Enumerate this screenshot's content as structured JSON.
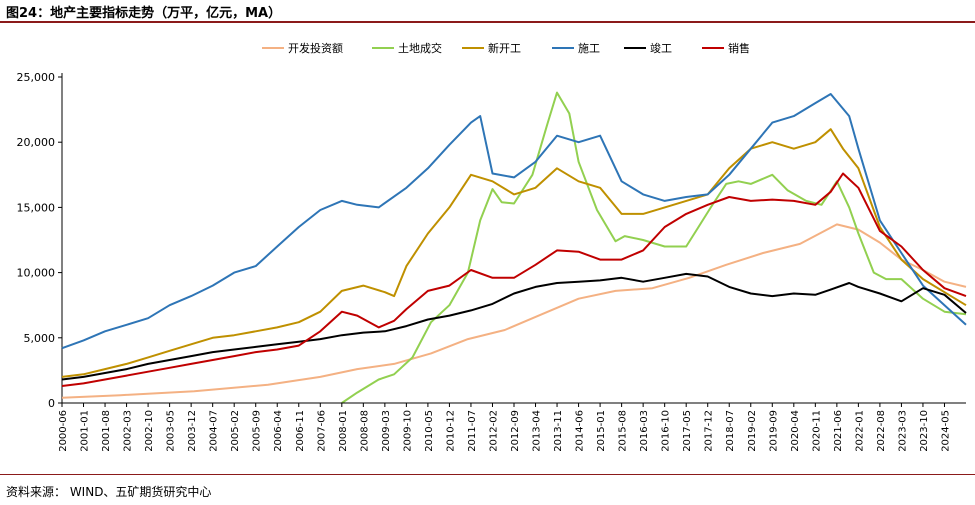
{
  "header": {
    "title": "图24：地产主要指标走势（万平，亿元，MA）"
  },
  "footer": {
    "source": "资料来源： WIND、五矿期货研究中心"
  },
  "chart_data": {
    "type": "line",
    "title": "图24：地产主要指标走势（万平，亿元，MA）",
    "xlabel": "",
    "ylabel": "",
    "ylim": [
      0,
      25000
    ],
    "yticks": [
      0,
      5000,
      10000,
      15000,
      20000,
      25000
    ],
    "ytick_labels": [
      "0",
      "5,000",
      "10,000",
      "15,000",
      "20,000",
      "25,000"
    ],
    "grid": false,
    "legend_position": "top-center",
    "x_start": "2000-06",
    "x_end": "2024-12",
    "xtick_labels": [
      "2000-06",
      "2001-01",
      "2001-08",
      "2002-03",
      "2002-10",
      "2003-05",
      "2003-12",
      "2004-07",
      "2005-02",
      "2005-09",
      "2006-04",
      "2006-11",
      "2007-06",
      "2008-01",
      "2008-08",
      "2009-03",
      "2009-10",
      "2010-05",
      "2010-12",
      "2011-07",
      "2012-02",
      "2012-09",
      "2013-04",
      "2013-11",
      "2014-06",
      "2015-01",
      "2015-08",
      "2016-03",
      "2016-10",
      "2017-05",
      "2017-12",
      "2018-07",
      "2019-02",
      "2019-09",
      "2020-04",
      "2020-11",
      "2021-06",
      "2022-01",
      "2022-08",
      "2023-03",
      "2023-10",
      "2024-05"
    ],
    "series": [
      {
        "name": "开发投资额",
        "color": "#f4b183",
        "points": [
          [
            "2000-06",
            400
          ],
          [
            "2002-01",
            600
          ],
          [
            "2004-01",
            900
          ],
          [
            "2006-01",
            1400
          ],
          [
            "2007-06",
            2000
          ],
          [
            "2008-06",
            2600
          ],
          [
            "2009-06",
            3000
          ],
          [
            "2010-06",
            3800
          ],
          [
            "2011-06",
            4900
          ],
          [
            "2012-06",
            5600
          ],
          [
            "2013-06",
            6800
          ],
          [
            "2014-06",
            8000
          ],
          [
            "2015-06",
            8600
          ],
          [
            "2016-06",
            8800
          ],
          [
            "2017-06",
            9600
          ],
          [
            "2018-06",
            10600
          ],
          [
            "2019-06",
            11500
          ],
          [
            "2020-06",
            12200
          ],
          [
            "2021-06",
            13700
          ],
          [
            "2022-01",
            13300
          ],
          [
            "2022-08",
            12300
          ],
          [
            "2023-03",
            11000
          ],
          [
            "2023-10",
            10200
          ],
          [
            "2024-05",
            9300
          ],
          [
            "2024-12",
            8900
          ]
        ]
      },
      {
        "name": "土地成交",
        "color": "#92d050",
        "points": [
          [
            "2008-01",
            0
          ],
          [
            "2008-06",
            800
          ],
          [
            "2009-01",
            1800
          ],
          [
            "2009-06",
            2200
          ],
          [
            "2009-12",
            3500
          ],
          [
            "2010-06",
            6200
          ],
          [
            "2010-12",
            7500
          ],
          [
            "2011-06",
            10000
          ],
          [
            "2011-10",
            14000
          ],
          [
            "2012-02",
            16400
          ],
          [
            "2012-05",
            15400
          ],
          [
            "2012-09",
            15300
          ],
          [
            "2013-03",
            17500
          ],
          [
            "2013-08",
            21500
          ],
          [
            "2013-11",
            23800
          ],
          [
            "2014-03",
            22200
          ],
          [
            "2014-06",
            18500
          ],
          [
            "2014-12",
            14800
          ],
          [
            "2015-06",
            12400
          ],
          [
            "2015-09",
            12800
          ],
          [
            "2016-03",
            12500
          ],
          [
            "2016-10",
            12000
          ],
          [
            "2017-05",
            12000
          ],
          [
            "2017-09",
            13500
          ],
          [
            "2018-01",
            15000
          ],
          [
            "2018-06",
            16800
          ],
          [
            "2018-10",
            17000
          ],
          [
            "2019-02",
            16800
          ],
          [
            "2019-09",
            17500
          ],
          [
            "2020-02",
            16300
          ],
          [
            "2020-08",
            15500
          ],
          [
            "2021-01",
            15200
          ],
          [
            "2021-06",
            17000
          ],
          [
            "2021-10",
            15000
          ],
          [
            "2022-01",
            13000
          ],
          [
            "2022-06",
            10000
          ],
          [
            "2022-10",
            9500
          ],
          [
            "2023-03",
            9500
          ],
          [
            "2023-10",
            8000
          ],
          [
            "2024-05",
            7000
          ],
          [
            "2024-12",
            6800
          ]
        ]
      },
      {
        "name": "新开工",
        "color": "#bf9000",
        "points": [
          [
            "2000-06",
            2000
          ],
          [
            "2001-01",
            2200
          ],
          [
            "2001-08",
            2600
          ],
          [
            "2002-03",
            3000
          ],
          [
            "2002-10",
            3500
          ],
          [
            "2003-05",
            4000
          ],
          [
            "2003-12",
            4500
          ],
          [
            "2004-07",
            5000
          ],
          [
            "2005-02",
            5200
          ],
          [
            "2005-09",
            5500
          ],
          [
            "2006-04",
            5800
          ],
          [
            "2006-11",
            6200
          ],
          [
            "2007-06",
            7000
          ],
          [
            "2008-01",
            8600
          ],
          [
            "2008-08",
            9000
          ],
          [
            "2009-03",
            8500
          ],
          [
            "2009-06",
            8200
          ],
          [
            "2009-10",
            10500
          ],
          [
            "2010-05",
            13000
          ],
          [
            "2010-12",
            15000
          ],
          [
            "2011-07",
            17500
          ],
          [
            "2012-02",
            17000
          ],
          [
            "2012-09",
            16000
          ],
          [
            "2013-04",
            16500
          ],
          [
            "2013-11",
            18000
          ],
          [
            "2014-06",
            17000
          ],
          [
            "2015-01",
            16500
          ],
          [
            "2015-08",
            14500
          ],
          [
            "2016-03",
            14500
          ],
          [
            "2016-10",
            15000
          ],
          [
            "2017-05",
            15500
          ],
          [
            "2017-12",
            16000
          ],
          [
            "2018-07",
            18000
          ],
          [
            "2019-02",
            19500
          ],
          [
            "2019-09",
            20000
          ],
          [
            "2020-04",
            19500
          ],
          [
            "2020-11",
            20000
          ],
          [
            "2021-04",
            21000
          ],
          [
            "2021-08",
            19500
          ],
          [
            "2022-01",
            18000
          ],
          [
            "2022-08",
            13500
          ],
          [
            "2023-03",
            11000
          ],
          [
            "2023-10",
            9500
          ],
          [
            "2024-05",
            8500
          ],
          [
            "2024-12",
            7500
          ]
        ]
      },
      {
        "name": "施工",
        "color": "#2e75b6",
        "points": [
          [
            "2000-06",
            4200
          ],
          [
            "2001-01",
            4800
          ],
          [
            "2001-08",
            5500
          ],
          [
            "2002-03",
            6000
          ],
          [
            "2002-10",
            6500
          ],
          [
            "2003-05",
            7500
          ],
          [
            "2003-12",
            8200
          ],
          [
            "2004-07",
            9000
          ],
          [
            "2005-02",
            10000
          ],
          [
            "2005-09",
            10500
          ],
          [
            "2006-04",
            12000
          ],
          [
            "2006-11",
            13500
          ],
          [
            "2007-06",
            14800
          ],
          [
            "2008-01",
            15500
          ],
          [
            "2008-06",
            15200
          ],
          [
            "2009-01",
            15000
          ],
          [
            "2009-10",
            16500
          ],
          [
            "2010-05",
            18000
          ],
          [
            "2010-12",
            19800
          ],
          [
            "2011-07",
            21500
          ],
          [
            "2011-10",
            22000
          ],
          [
            "2012-02",
            17600
          ],
          [
            "2012-09",
            17300
          ],
          [
            "2013-04",
            18500
          ],
          [
            "2013-11",
            20500
          ],
          [
            "2014-06",
            20000
          ],
          [
            "2015-01",
            20500
          ],
          [
            "2015-08",
            17000
          ],
          [
            "2016-03",
            16000
          ],
          [
            "2016-10",
            15500
          ],
          [
            "2017-05",
            15800
          ],
          [
            "2017-12",
            16000
          ],
          [
            "2018-07",
            17500
          ],
          [
            "2019-02",
            19500
          ],
          [
            "2019-09",
            21500
          ],
          [
            "2020-04",
            22000
          ],
          [
            "2020-11",
            23000
          ],
          [
            "2021-04",
            23700
          ],
          [
            "2021-10",
            22000
          ],
          [
            "2022-01",
            19500
          ],
          [
            "2022-08",
            14000
          ],
          [
            "2023-03",
            11500
          ],
          [
            "2023-10",
            9000
          ],
          [
            "2024-05",
            7500
          ],
          [
            "2024-12",
            6000
          ]
        ]
      },
      {
        "name": "竣工",
        "color": "#000000",
        "points": [
          [
            "2000-06",
            1800
          ],
          [
            "2001-01",
            2000
          ],
          [
            "2001-08",
            2300
          ],
          [
            "2002-03",
            2600
          ],
          [
            "2002-10",
            3000
          ],
          [
            "2003-05",
            3300
          ],
          [
            "2003-12",
            3600
          ],
          [
            "2004-07",
            3900
          ],
          [
            "2005-02",
            4100
          ],
          [
            "2005-09",
            4300
          ],
          [
            "2006-04",
            4500
          ],
          [
            "2006-11",
            4700
          ],
          [
            "2007-06",
            4900
          ],
          [
            "2008-01",
            5200
          ],
          [
            "2008-08",
            5400
          ],
          [
            "2009-03",
            5500
          ],
          [
            "2009-10",
            5900
          ],
          [
            "2010-05",
            6400
          ],
          [
            "2010-12",
            6700
          ],
          [
            "2011-07",
            7100
          ],
          [
            "2012-02",
            7600
          ],
          [
            "2012-09",
            8400
          ],
          [
            "2013-04",
            8900
          ],
          [
            "2013-11",
            9200
          ],
          [
            "2014-06",
            9300
          ],
          [
            "2015-01",
            9400
          ],
          [
            "2015-08",
            9600
          ],
          [
            "2016-03",
            9300
          ],
          [
            "2016-10",
            9600
          ],
          [
            "2017-05",
            9900
          ],
          [
            "2017-12",
            9700
          ],
          [
            "2018-07",
            8900
          ],
          [
            "2019-02",
            8400
          ],
          [
            "2019-09",
            8200
          ],
          [
            "2020-04",
            8400
          ],
          [
            "2020-11",
            8300
          ],
          [
            "2021-04",
            8700
          ],
          [
            "2021-10",
            9200
          ],
          [
            "2022-01",
            8900
          ],
          [
            "2022-08",
            8400
          ],
          [
            "2023-03",
            7800
          ],
          [
            "2023-10",
            8800
          ],
          [
            "2024-05",
            8300
          ],
          [
            "2024-12",
            6900
          ]
        ]
      },
      {
        "name": "销售",
        "color": "#c00000",
        "points": [
          [
            "2000-06",
            1300
          ],
          [
            "2001-01",
            1500
          ],
          [
            "2001-08",
            1800
          ],
          [
            "2002-03",
            2100
          ],
          [
            "2002-10",
            2400
          ],
          [
            "2003-05",
            2700
          ],
          [
            "2003-12",
            3000
          ],
          [
            "2004-07",
            3300
          ],
          [
            "2005-02",
            3600
          ],
          [
            "2005-09",
            3900
          ],
          [
            "2006-04",
            4100
          ],
          [
            "2006-11",
            4400
          ],
          [
            "2007-06",
            5500
          ],
          [
            "2008-01",
            7000
          ],
          [
            "2008-06",
            6700
          ],
          [
            "2009-01",
            5800
          ],
          [
            "2009-06",
            6300
          ],
          [
            "2009-10",
            7200
          ],
          [
            "2010-05",
            8600
          ],
          [
            "2010-12",
            9000
          ],
          [
            "2011-07",
            10200
          ],
          [
            "2012-02",
            9600
          ],
          [
            "2012-09",
            9600
          ],
          [
            "2013-04",
            10600
          ],
          [
            "2013-11",
            11700
          ],
          [
            "2014-06",
            11600
          ],
          [
            "2015-01",
            11000
          ],
          [
            "2015-08",
            11000
          ],
          [
            "2016-03",
            11700
          ],
          [
            "2016-10",
            13500
          ],
          [
            "2017-05",
            14500
          ],
          [
            "2017-12",
            15200
          ],
          [
            "2018-07",
            15800
          ],
          [
            "2019-02",
            15500
          ],
          [
            "2019-09",
            15600
          ],
          [
            "2020-04",
            15500
          ],
          [
            "2020-11",
            15200
          ],
          [
            "2021-04",
            16200
          ],
          [
            "2021-08",
            17600
          ],
          [
            "2022-01",
            16500
          ],
          [
            "2022-08",
            13200
          ],
          [
            "2023-03",
            12000
          ],
          [
            "2023-10",
            10200
          ],
          [
            "2024-05",
            8800
          ],
          [
            "2024-12",
            8200
          ]
        ]
      }
    ]
  }
}
